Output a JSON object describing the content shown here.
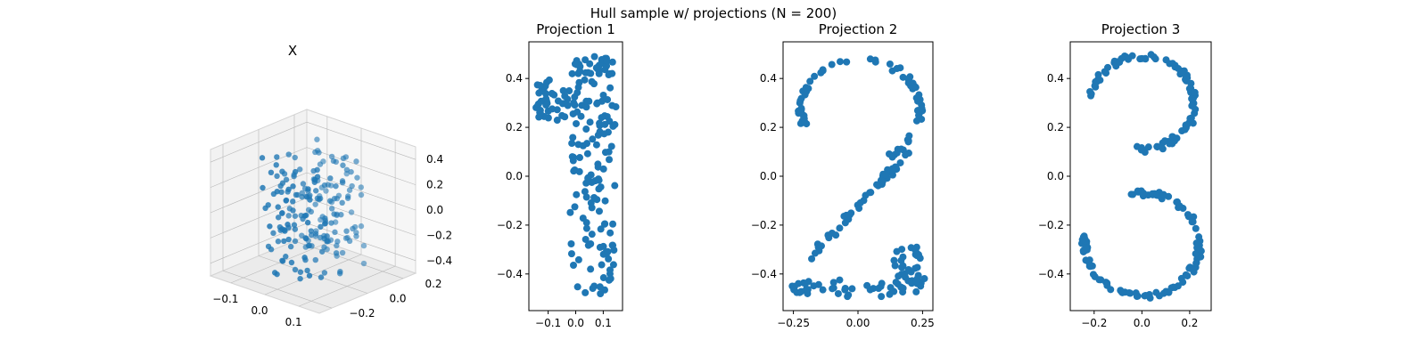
{
  "figure": {
    "suptitle": "Hull sample w/ projections (N = 200)",
    "point_color": "#1f77b4"
  },
  "chart_data": [
    {
      "type": "scatter3d",
      "title": "X",
      "x_ticks": [
        -0.1,
        0.0,
        0.1
      ],
      "y_ticks": [
        -0.2,
        0.0,
        0.2
      ],
      "z_ticks": [
        -0.4,
        -0.2,
        0.0,
        0.2,
        0.4
      ],
      "tick_labels": {
        "x": [
          "−0.1",
          "0.0",
          "0.1"
        ],
        "y": [
          "−0.2",
          "0.0",
          "0.2"
        ],
        "z": [
          "−0.4",
          "−0.2",
          "0.0",
          "0.2",
          "0.4"
        ]
      },
      "xlim": [
        -0.16,
        0.16
      ],
      "ylim": [
        -0.27,
        0.27
      ],
      "zlim": [
        -0.5,
        0.5
      ],
      "grid": true
    },
    {
      "type": "scatter",
      "title": "Projection 1",
      "xlim": [
        -0.17,
        0.17
      ],
      "ylim": [
        -0.55,
        0.55
      ],
      "x_ticks": [
        -0.1,
        0.0,
        0.1
      ],
      "y_ticks": [
        -0.4,
        -0.2,
        0.0,
        0.2,
        0.4
      ],
      "tick_labels": {
        "x": [
          "−0.1",
          "0.0",
          "0.1"
        ],
        "y": [
          "−0.4",
          "−0.2",
          "0.0",
          "0.2",
          "0.4"
        ]
      },
      "grid": false,
      "shape": "1"
    },
    {
      "type": "scatter",
      "title": "Projection 2",
      "xlim": [
        -0.29,
        0.29
      ],
      "ylim": [
        -0.55,
        0.55
      ],
      "x_ticks": [
        -0.25,
        0.0,
        0.25
      ],
      "y_ticks": [
        -0.4,
        -0.2,
        0.0,
        0.2,
        0.4
      ],
      "tick_labels": {
        "x": [
          "−0.25",
          "0.00",
          "0.25"
        ],
        "y": [
          "−0.4",
          "−0.2",
          "0.0",
          "0.2",
          "0.4"
        ]
      },
      "grid": false,
      "shape": "2"
    },
    {
      "type": "scatter",
      "title": "Projection 3",
      "xlim": [
        -0.3,
        0.29
      ],
      "ylim": [
        -0.55,
        0.55
      ],
      "x_ticks": [
        -0.2,
        0.0,
        0.2
      ],
      "y_ticks": [
        -0.4,
        -0.2,
        0.0,
        0.2,
        0.4
      ],
      "tick_labels": {
        "x": [
          "−0.2",
          "0.0",
          "0.2"
        ],
        "y": [
          "−0.4",
          "−0.2",
          "0.0",
          "0.2",
          "0.4"
        ]
      },
      "grid": false,
      "shape": "3"
    }
  ]
}
